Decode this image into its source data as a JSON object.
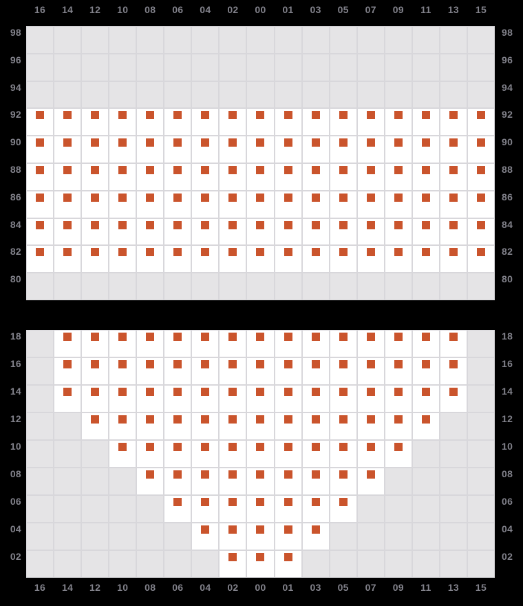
{
  "colors": {
    "background": "#000000",
    "axis_label": "#82828b",
    "grid_line": "#d8d7db",
    "cell_empty": "#e5e4e6",
    "cell_filled": "#ffffff",
    "marker": "#ca542c"
  },
  "chart_data": {
    "type": "heatmap",
    "grid": "on",
    "x_axis_label_positions": [
      "top",
      "bottom"
    ],
    "y_axis_label_positions": [
      "left",
      "right"
    ],
    "columns": [
      "16",
      "14",
      "12",
      "10",
      "08",
      "06",
      "04",
      "02",
      "00",
      "01",
      "03",
      "05",
      "07",
      "09",
      "11",
      "13",
      "15"
    ],
    "panels": [
      {
        "id": "upper",
        "rows": [
          {
            "label": "98",
            "cells": "00000000000000000"
          },
          {
            "label": "96",
            "cells": "00000000000000000"
          },
          {
            "label": "94",
            "cells": "00000000000000000"
          },
          {
            "label": "92",
            "cells": "11111111111111111"
          },
          {
            "label": "90",
            "cells": "11111111111111111"
          },
          {
            "label": "88",
            "cells": "11111111111111111"
          },
          {
            "label": "86",
            "cells": "11111111111111111"
          },
          {
            "label": "84",
            "cells": "11111111111111111"
          },
          {
            "label": "82",
            "cells": "11111111111111111"
          },
          {
            "label": "80",
            "cells": "00000000000000000"
          }
        ]
      },
      {
        "id": "lower",
        "rows": [
          {
            "label": "18",
            "cells": "01111111111111110"
          },
          {
            "label": "16",
            "cells": "01111111111111110"
          },
          {
            "label": "14",
            "cells": "01111111111111110"
          },
          {
            "label": "12",
            "cells": "00111111111111100"
          },
          {
            "label": "10",
            "cells": "00011111111111000"
          },
          {
            "label": "08",
            "cells": "00001111111110000"
          },
          {
            "label": "06",
            "cells": "00000111111100000"
          },
          {
            "label": "04",
            "cells": "00000011111000000"
          },
          {
            "label": "02",
            "cells": "00000001110000000"
          }
        ]
      }
    ]
  }
}
